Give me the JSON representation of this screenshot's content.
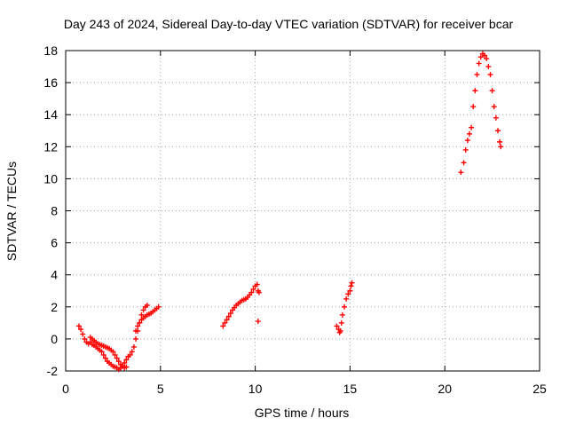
{
  "chart_data": {
    "type": "scatter",
    "title": "Day 243 of 2024, Sidereal Day-to-day VTEC variation (SDTVAR) for receiver bcar",
    "xlabel": "GPS time / hours",
    "ylabel": "SDTVAR / TECUs",
    "xlim": [
      0,
      25
    ],
    "ylim": [
      -2,
      18
    ],
    "x_ticks": [
      0,
      5,
      10,
      15,
      20,
      25
    ],
    "y_ticks": [
      -2,
      0,
      2,
      4,
      6,
      8,
      10,
      12,
      14,
      16,
      18
    ],
    "grid": true,
    "legend": "none",
    "marker": "+",
    "marker_color": "#ff0000",
    "series": [
      {
        "points": [
          [
            0.7,
            0.8
          ],
          [
            0.8,
            0.6
          ],
          [
            0.9,
            0.3
          ],
          [
            1.0,
            0.0
          ],
          [
            1.1,
            -0.2
          ],
          [
            1.2,
            -0.3
          ],
          [
            1.3,
            -0.2
          ],
          [
            1.4,
            -0.35
          ],
          [
            1.5,
            -0.4
          ],
          [
            1.6,
            -0.5
          ],
          [
            1.7,
            -0.6
          ],
          [
            1.8,
            -0.7
          ],
          [
            1.9,
            -0.8
          ],
          [
            2.0,
            -1.0
          ],
          [
            2.1,
            -1.2
          ],
          [
            2.2,
            -1.4
          ],
          [
            2.3,
            -1.5
          ],
          [
            2.4,
            -1.6
          ],
          [
            2.5,
            -1.7
          ],
          [
            2.6,
            -1.75
          ],
          [
            2.7,
            -1.8
          ],
          [
            2.8,
            -1.9
          ],
          [
            2.9,
            -1.8
          ],
          [
            3.0,
            -1.7
          ],
          [
            3.1,
            -1.5
          ],
          [
            3.2,
            -1.3
          ],
          [
            3.3,
            -1.1
          ],
          [
            3.4,
            -1.0
          ],
          [
            3.5,
            -0.8
          ]
        ]
      },
      {
        "points": [
          [
            1.3,
            0.1
          ],
          [
            1.4,
            0.0
          ],
          [
            1.5,
            -0.1
          ],
          [
            1.6,
            -0.2
          ],
          [
            1.7,
            -0.3
          ],
          [
            1.8,
            -0.35
          ],
          [
            1.9,
            -0.4
          ],
          [
            2.0,
            -0.45
          ],
          [
            2.1,
            -0.5
          ],
          [
            2.2,
            -0.55
          ],
          [
            2.3,
            -0.6
          ],
          [
            2.4,
            -0.7
          ],
          [
            2.5,
            -0.8
          ],
          [
            2.6,
            -1.0
          ],
          [
            2.7,
            -1.2
          ],
          [
            2.8,
            -1.4
          ],
          [
            2.9,
            -1.6
          ],
          [
            3.0,
            -1.7
          ],
          [
            3.1,
            -1.8
          ],
          [
            3.2,
            -1.75
          ]
        ]
      },
      {
        "points": [
          [
            3.6,
            -0.5
          ],
          [
            3.7,
            0.0
          ],
          [
            3.8,
            0.5
          ],
          [
            3.9,
            1.0
          ],
          [
            4.0,
            1.5
          ],
          [
            4.1,
            1.8
          ],
          [
            4.2,
            2.0
          ],
          [
            4.3,
            2.1
          ]
        ]
      },
      {
        "points": [
          [
            3.7,
            0.5
          ],
          [
            3.8,
            0.8
          ],
          [
            3.9,
            1.0
          ],
          [
            4.0,
            1.2
          ],
          [
            4.1,
            1.3
          ],
          [
            4.2,
            1.4
          ],
          [
            4.3,
            1.5
          ],
          [
            4.4,
            1.55
          ],
          [
            4.5,
            1.6
          ],
          [
            4.6,
            1.7
          ],
          [
            4.7,
            1.8
          ],
          [
            4.8,
            1.9
          ],
          [
            4.9,
            2.0
          ]
        ]
      },
      {
        "points": [
          [
            8.3,
            0.8
          ],
          [
            8.4,
            1.0
          ],
          [
            8.5,
            1.2
          ],
          [
            8.6,
            1.4
          ],
          [
            8.7,
            1.6
          ],
          [
            8.8,
            1.8
          ],
          [
            8.9,
            1.95
          ],
          [
            9.0,
            2.1
          ],
          [
            9.1,
            2.2
          ],
          [
            9.2,
            2.3
          ],
          [
            9.3,
            2.4
          ],
          [
            9.4,
            2.45
          ],
          [
            9.5,
            2.5
          ],
          [
            9.6,
            2.6
          ],
          [
            9.7,
            2.75
          ],
          [
            9.8,
            2.9
          ],
          [
            9.9,
            3.1
          ],
          [
            10.0,
            3.3
          ],
          [
            10.1,
            3.4
          ],
          [
            10.15,
            3.0
          ],
          [
            10.2,
            2.9
          ]
        ]
      },
      {
        "points": [
          [
            10.15,
            1.1
          ]
        ]
      },
      {
        "points": [
          [
            14.3,
            0.8
          ],
          [
            14.4,
            0.6
          ],
          [
            14.45,
            0.4
          ],
          [
            14.5,
            0.5
          ],
          [
            14.55,
            1.0
          ],
          [
            14.6,
            1.5
          ],
          [
            14.7,
            2.0
          ],
          [
            14.8,
            2.5
          ],
          [
            14.9,
            2.8
          ],
          [
            15.0,
            3.0
          ],
          [
            15.05,
            3.3
          ],
          [
            15.1,
            3.5
          ]
        ]
      },
      {
        "points": [
          [
            20.85,
            10.4
          ],
          [
            21.0,
            11.0
          ],
          [
            21.1,
            11.8
          ],
          [
            21.2,
            12.4
          ],
          [
            21.3,
            12.8
          ],
          [
            21.4,
            13.2
          ],
          [
            21.5,
            14.5
          ],
          [
            21.6,
            15.5
          ],
          [
            21.7,
            16.5
          ],
          [
            21.8,
            17.2
          ],
          [
            21.9,
            17.6
          ],
          [
            22.0,
            17.8
          ],
          [
            22.1,
            17.7
          ],
          [
            22.2,
            17.5
          ],
          [
            22.3,
            17.0
          ],
          [
            22.4,
            16.5
          ],
          [
            22.5,
            15.5
          ],
          [
            22.6,
            14.5
          ],
          [
            22.7,
            13.8
          ],
          [
            22.8,
            13.0
          ],
          [
            22.9,
            12.3
          ],
          [
            22.95,
            12.0
          ]
        ]
      }
    ]
  }
}
